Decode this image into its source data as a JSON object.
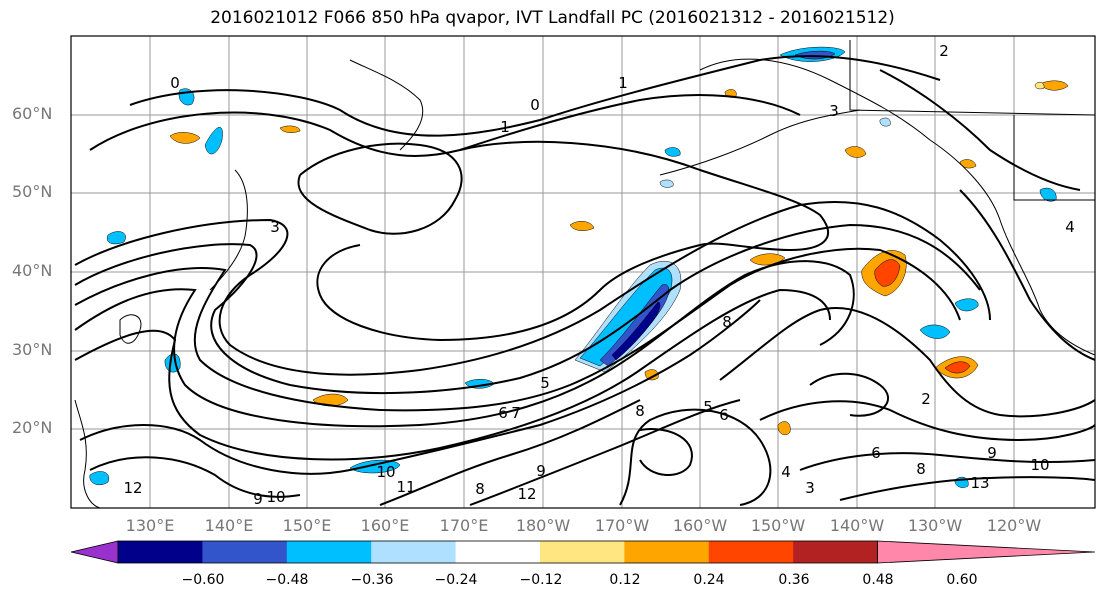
{
  "title": "2016021012 F066 850 hPa qvapor, IVT Landfall PC (2016021312 - 2016021512)",
  "lat_labels": [
    "60°N",
    "50°N",
    "40°N",
    "30°N",
    "20°N"
  ],
  "lon_labels": [
    "130°E",
    "140°E",
    "150°E",
    "160°E",
    "170°E",
    "180°W",
    "170°W",
    "160°W",
    "150°W",
    "140°W",
    "130°W",
    "120°W"
  ],
  "colorbar": {
    "colors": [
      "#9932cc",
      "#00008b",
      "#3355cc",
      "#00bfff",
      "#b0e0ff",
      "#ffffff",
      "#ffe680",
      "#ffa500",
      "#ff4500",
      "#b22222",
      "#ff88aa"
    ],
    "ticks": [
      "−0.60",
      "−0.48",
      "−0.36",
      "−0.24",
      "−0.12",
      "0.12",
      "0.24",
      "0.36",
      "0.48",
      "0.60"
    ]
  },
  "contour_labels": [
    "0",
    "0",
    "1",
    "1",
    "2",
    "2",
    "3",
    "3",
    "3",
    "4",
    "4",
    "5",
    "5",
    "6",
    "6",
    "6",
    "7",
    "8",
    "8",
    "8",
    "8",
    "9",
    "9",
    "9",
    "10",
    "10",
    "10",
    "11",
    "12",
    "12",
    "13"
  ]
}
